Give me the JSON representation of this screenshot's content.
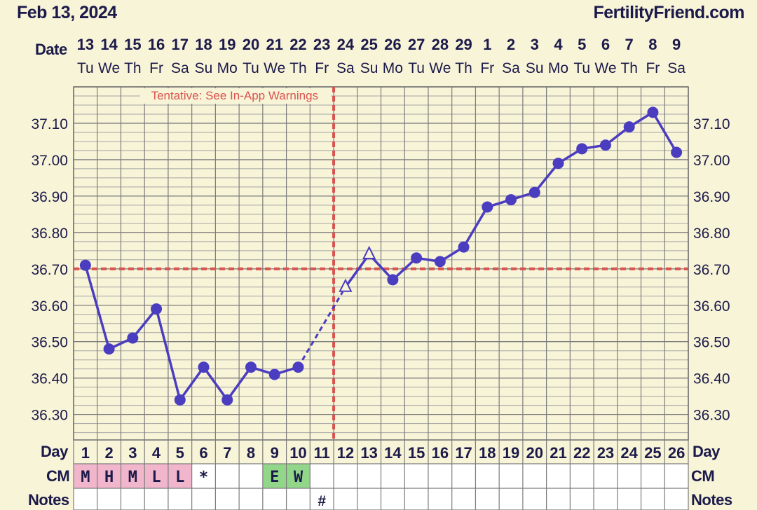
{
  "header": {
    "date": "Feb 13, 2024",
    "site": "FertilityFriend.com"
  },
  "labels": {
    "date_row": "Date",
    "day_row": "Day",
    "cm_row": "CM",
    "notes_row": "Notes"
  },
  "chart_data": {
    "type": "line",
    "title": "",
    "y_ticks": [
      "36.30",
      "36.40",
      "36.50",
      "36.60",
      "36.70",
      "36.80",
      "36.90",
      "37.00",
      "37.10"
    ],
    "ylim": [
      36.23,
      37.2
    ],
    "dates": [
      "13",
      "14",
      "15",
      "16",
      "17",
      "18",
      "19",
      "20",
      "21",
      "22",
      "23",
      "24",
      "25",
      "26",
      "27",
      "28",
      "29",
      "1",
      "2",
      "3",
      "4",
      "5",
      "6",
      "7",
      "8",
      "9"
    ],
    "weekdays": [
      "Tu",
      "We",
      "Th",
      "Fr",
      "Sa",
      "Su",
      "Mo",
      "Tu",
      "We",
      "Th",
      "Fr",
      "Sa",
      "Su",
      "Mo",
      "Tu",
      "We",
      "Th",
      "Fr",
      "Sa",
      "Su",
      "Mo",
      "Tu",
      "We",
      "Th",
      "Fr",
      "Sa"
    ],
    "cycle_days": [
      "1",
      "2",
      "3",
      "4",
      "5",
      "6",
      "7",
      "8",
      "9",
      "10",
      "11",
      "12",
      "13",
      "14",
      "15",
      "16",
      "17",
      "18",
      "19",
      "20",
      "21",
      "22",
      "23",
      "24",
      "25",
      "26"
    ],
    "series": [
      {
        "color": "#4b3dbf",
        "values": [
          36.71,
          36.48,
          36.51,
          36.59,
          36.34,
          36.43,
          36.34,
          36.43,
          36.41,
          36.43,
          null,
          36.65,
          36.74,
          36.67,
          36.73,
          36.72,
          36.76,
          36.87,
          36.89,
          36.91,
          36.99,
          37.03,
          37.04,
          37.09,
          37.13,
          37.02
        ],
        "marker_types": [
          "dot",
          "dot",
          "dot",
          "dot",
          "dot",
          "dot",
          "dot",
          "dot",
          "dot",
          "dot",
          null,
          "triangle",
          "triangle",
          "dot",
          "dot",
          "dot",
          "dot",
          "dot",
          "dot",
          "dot",
          "dot",
          "dot",
          "dot",
          "dot",
          "dot",
          "dot"
        ]
      }
    ],
    "coverline": {
      "value": 36.7,
      "color": "#d9534f"
    },
    "ovulation": {
      "day_index": 11,
      "color": "#d9534f",
      "annotation": "Tentative: See In-App Warnings"
    },
    "cervical_mucus": [
      "M",
      "H",
      "M",
      "L",
      "L",
      "*",
      "",
      "",
      "E",
      "W",
      "",
      "",
      "",
      "",
      "",
      "",
      "",
      "",
      "",
      "",
      "",
      "",
      "",
      "",
      "",
      ""
    ],
    "cm_colors": {
      "M": "#f2b6cc",
      "H": "#f2b6cc",
      "L": "#f2b6cc",
      "E": "#92d68a",
      "W": "#92d68a"
    },
    "notes": [
      "",
      "",
      "",
      "",
      "",
      "",
      "",
      "",
      "",
      "",
      "#",
      "",
      "",
      "",
      "",
      "",
      "",
      "",
      "",
      "",
      "",
      "",
      "",
      "",
      "",
      ""
    ]
  }
}
